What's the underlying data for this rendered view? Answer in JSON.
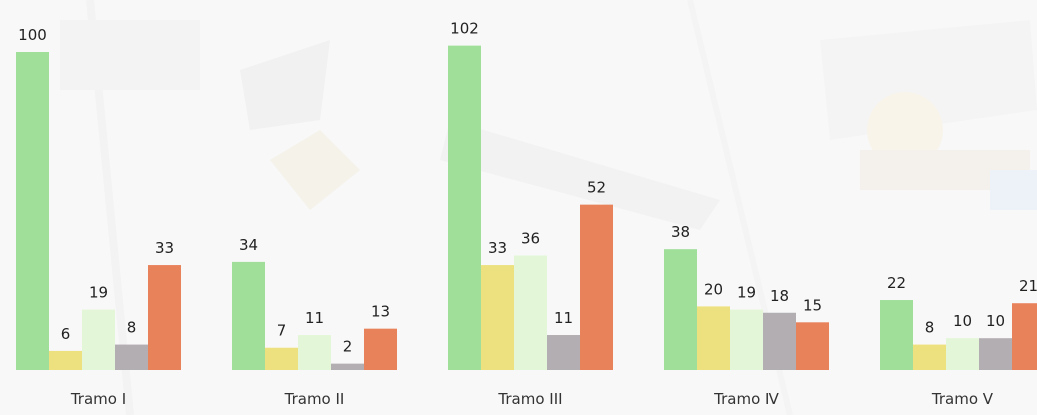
{
  "chart_data": {
    "type": "bar",
    "categories": [
      "Tramo I",
      "Tramo II",
      "Tramo III",
      "Tramo Ⅳ",
      "Tramo V"
    ],
    "series": [
      {
        "color": "#9fdf9a",
        "values": [
          100,
          34,
          102,
          38,
          22
        ]
      },
      {
        "color": "#ede07e",
        "values": [
          6,
          7,
          33,
          20,
          8
        ]
      },
      {
        "color": "#e3f7d8",
        "values": [
          19,
          11,
          36,
          19,
          10
        ]
      },
      {
        "color": "#b3aeb2",
        "values": [
          8,
          2,
          11,
          18,
          10
        ]
      },
      {
        "color": "#e8825a",
        "values": [
          33,
          13,
          52,
          15,
          21
        ]
      }
    ],
    "title": "",
    "xlabel": "",
    "ylabel": "",
    "ylim": [
      0,
      102
    ],
    "grid": false,
    "legend": "none",
    "data_labels": true
  }
}
